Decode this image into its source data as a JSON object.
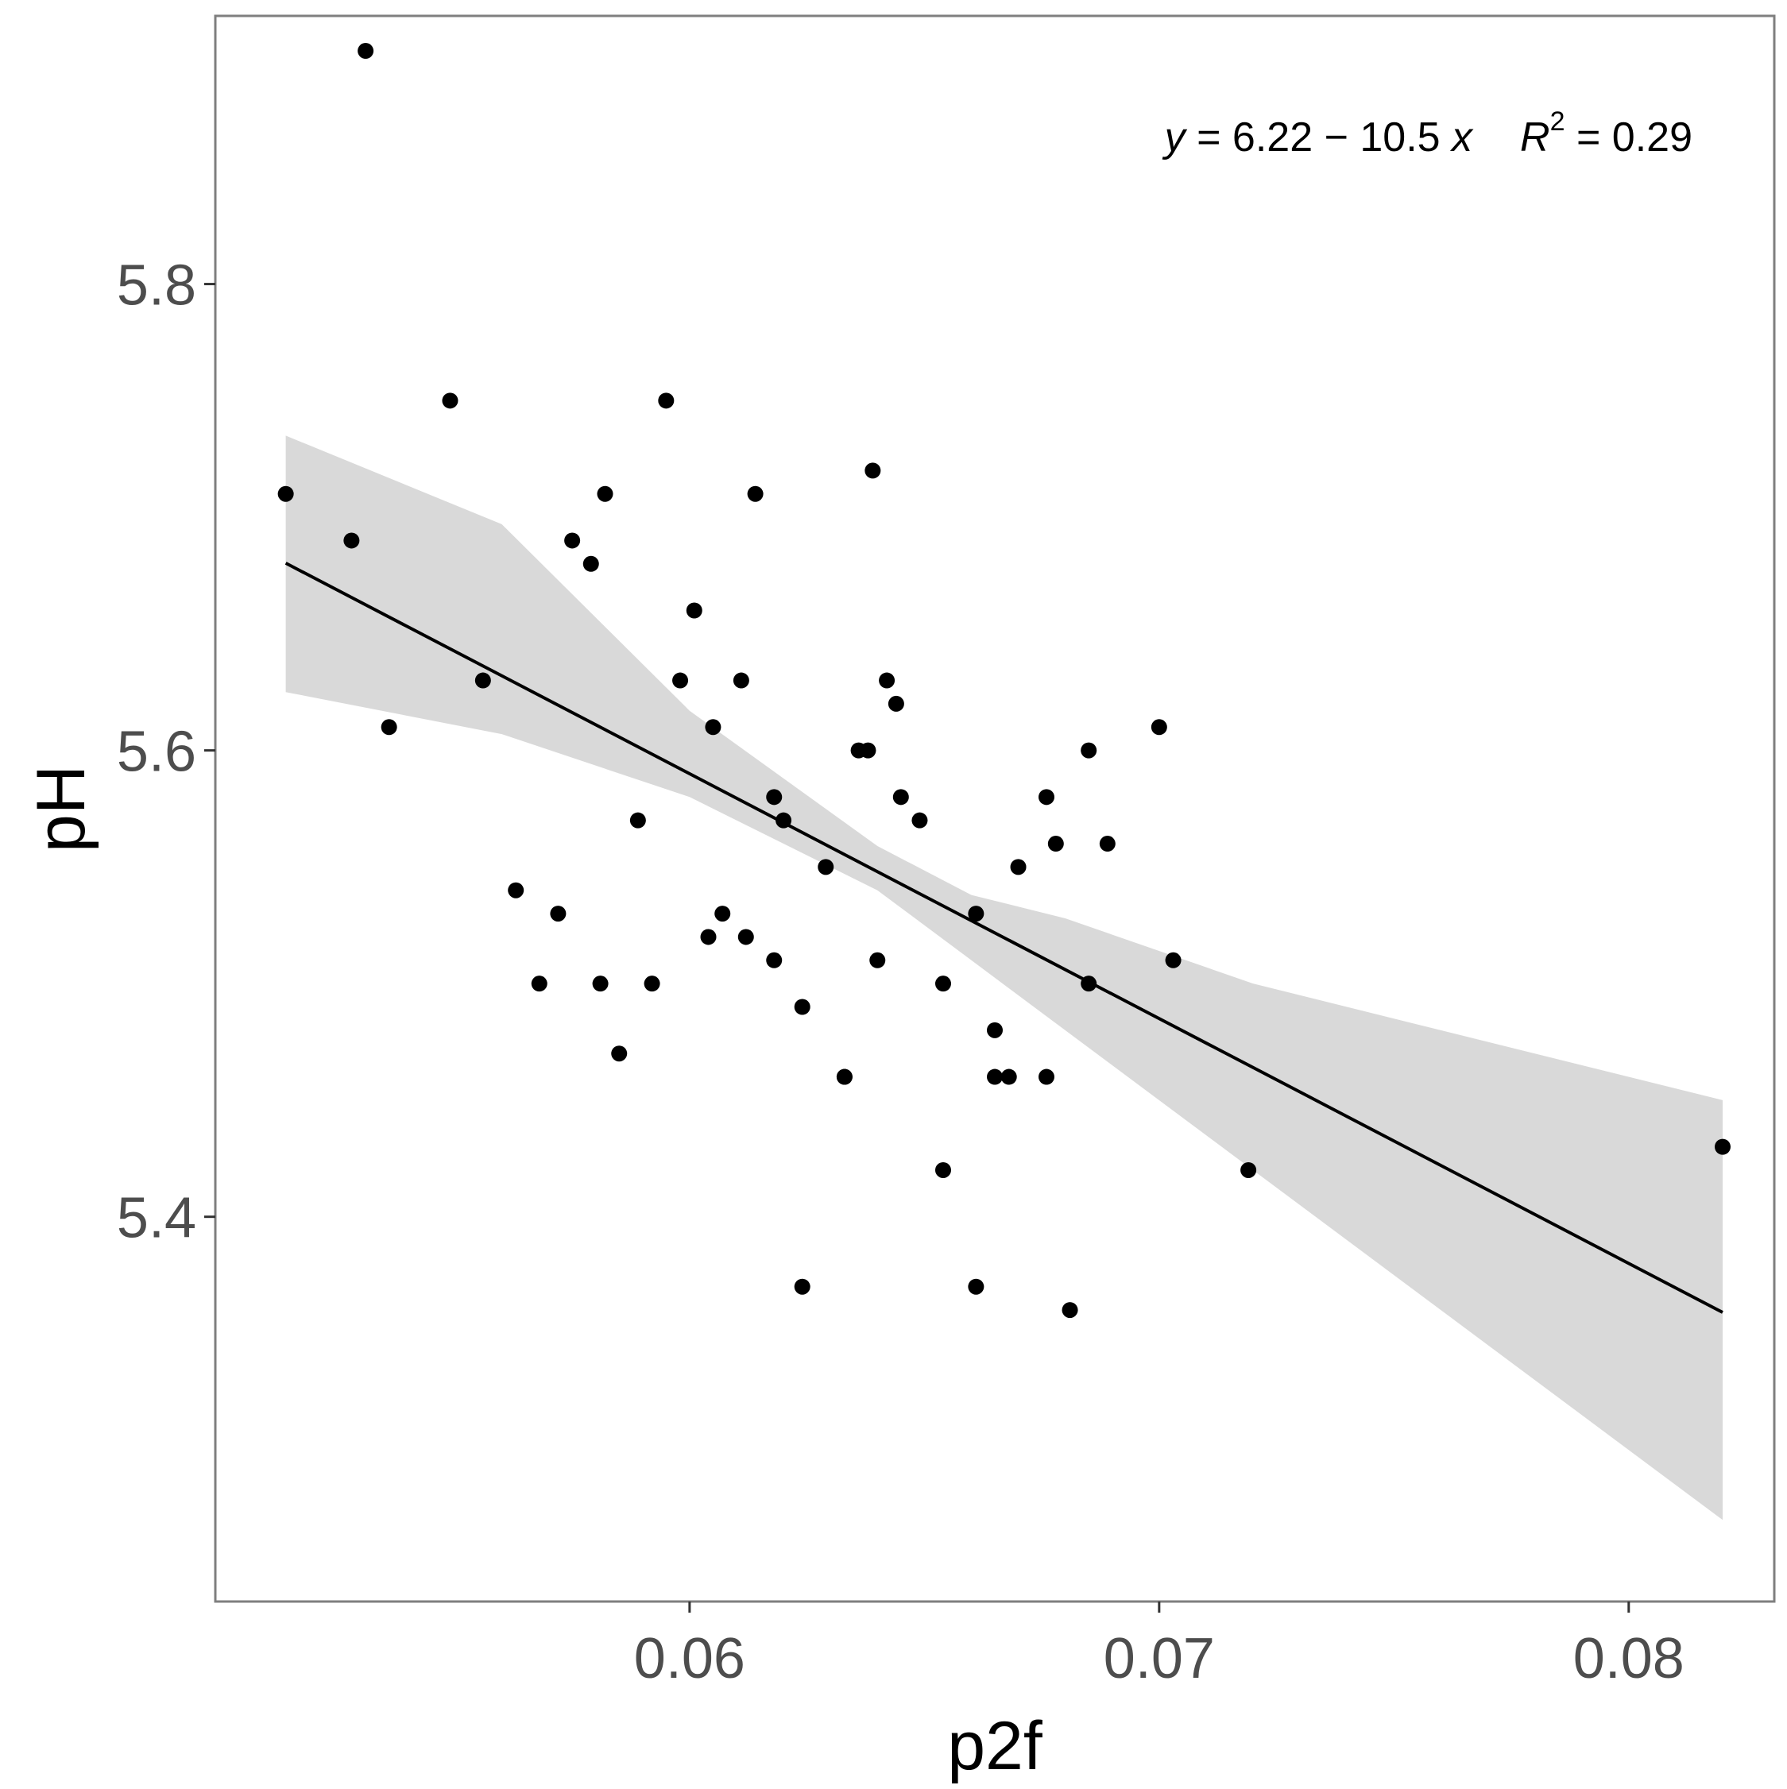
{
  "chart_data": {
    "type": "scatter",
    "xlabel": "p2f",
    "ylabel": "pH",
    "xlim": [
      0.0499,
      0.0831
    ],
    "ylim": [
      5.235,
      5.915
    ],
    "x_ticks": [
      {
        "value": 0.06,
        "label": "0.06"
      },
      {
        "value": 0.07,
        "label": "0.07"
      },
      {
        "value": 0.08,
        "label": "0.08"
      }
    ],
    "y_ticks": [
      {
        "value": 5.4,
        "label": "5.4"
      },
      {
        "value": 5.6,
        "label": "5.6"
      },
      {
        "value": 5.8,
        "label": "5.8"
      }
    ],
    "grid": false,
    "colors": {
      "points": "#000000",
      "fit_line": "#000000",
      "confidence_band": "#d9d9d9",
      "panel_border": "#7f7f7f"
    },
    "annotation": {
      "y_var": "y",
      "eq_body": " = 6.22 − 10.5 ",
      "x_var": "x",
      "r_var": "R",
      "r_exp": "2",
      "r_val": " = 0.29"
    },
    "fit": {
      "intercept": 6.22,
      "slope": -10.5,
      "r_squared": 0.29,
      "x_range": [
        0.0514,
        0.082
      ]
    },
    "confidence_band": {
      "x": [
        0.0514,
        0.056,
        0.06,
        0.064,
        0.066,
        0.068,
        0.072,
        0.076,
        0.082
      ],
      "lower": [
        5.625,
        5.607,
        5.58,
        5.54,
        5.51,
        5.48,
        5.42,
        5.36,
        5.27
      ],
      "upper": [
        5.735,
        5.697,
        5.617,
        5.559,
        5.538,
        5.528,
        5.5,
        5.48,
        5.45
      ]
    },
    "points": [
      {
        "x": 0.0514,
        "y": 5.71
      },
      {
        "x": 0.0528,
        "y": 5.69
      },
      {
        "x": 0.0531,
        "y": 5.9
      },
      {
        "x": 0.0536,
        "y": 5.61
      },
      {
        "x": 0.0549,
        "y": 5.75
      },
      {
        "x": 0.0556,
        "y": 5.63
      },
      {
        "x": 0.0563,
        "y": 5.54
      },
      {
        "x": 0.0568,
        "y": 5.5
      },
      {
        "x": 0.0572,
        "y": 5.53
      },
      {
        "x": 0.0575,
        "y": 5.69
      },
      {
        "x": 0.0579,
        "y": 5.68
      },
      {
        "x": 0.0581,
        "y": 5.5
      },
      {
        "x": 0.0582,
        "y": 5.71
      },
      {
        "x": 0.0585,
        "y": 5.47
      },
      {
        "x": 0.0589,
        "y": 5.57
      },
      {
        "x": 0.0592,
        "y": 5.5
      },
      {
        "x": 0.0595,
        "y": 5.75
      },
      {
        "x": 0.0598,
        "y": 5.63
      },
      {
        "x": 0.0601,
        "y": 5.66
      },
      {
        "x": 0.0604,
        "y": 5.52
      },
      {
        "x": 0.0605,
        "y": 5.61
      },
      {
        "x": 0.0607,
        "y": 5.53
      },
      {
        "x": 0.0611,
        "y": 5.63
      },
      {
        "x": 0.0612,
        "y": 5.52
      },
      {
        "x": 0.0614,
        "y": 5.71
      },
      {
        "x": 0.0618,
        "y": 5.58
      },
      {
        "x": 0.0618,
        "y": 5.51
      },
      {
        "x": 0.062,
        "y": 5.57
      },
      {
        "x": 0.0624,
        "y": 5.49
      },
      {
        "x": 0.0624,
        "y": 5.37
      },
      {
        "x": 0.0629,
        "y": 5.55
      },
      {
        "x": 0.0633,
        "y": 5.46
      },
      {
        "x": 0.0633,
        "y": 5.46
      },
      {
        "x": 0.0636,
        "y": 5.6
      },
      {
        "x": 0.0638,
        "y": 5.6
      },
      {
        "x": 0.0639,
        "y": 5.72
      },
      {
        "x": 0.064,
        "y": 5.51
      },
      {
        "x": 0.0642,
        "y": 5.63
      },
      {
        "x": 0.0644,
        "y": 5.62
      },
      {
        "x": 0.0645,
        "y": 5.58
      },
      {
        "x": 0.0649,
        "y": 5.57
      },
      {
        "x": 0.0654,
        "y": 5.5
      },
      {
        "x": 0.0654,
        "y": 5.42
      },
      {
        "x": 0.0661,
        "y": 5.53
      },
      {
        "x": 0.0661,
        "y": 5.37
      },
      {
        "x": 0.0665,
        "y": 5.48
      },
      {
        "x": 0.0665,
        "y": 5.46
      },
      {
        "x": 0.0668,
        "y": 5.46
      },
      {
        "x": 0.067,
        "y": 5.55
      },
      {
        "x": 0.0676,
        "y": 5.58
      },
      {
        "x": 0.0676,
        "y": 5.46
      },
      {
        "x": 0.0678,
        "y": 5.56
      },
      {
        "x": 0.0681,
        "y": 5.36
      },
      {
        "x": 0.0685,
        "y": 5.6
      },
      {
        "x": 0.0685,
        "y": 5.5
      },
      {
        "x": 0.0689,
        "y": 5.56
      },
      {
        "x": 0.07,
        "y": 5.61
      },
      {
        "x": 0.0703,
        "y": 5.51
      },
      {
        "x": 0.0719,
        "y": 5.42
      },
      {
        "x": 0.082,
        "y": 5.43
      }
    ]
  }
}
